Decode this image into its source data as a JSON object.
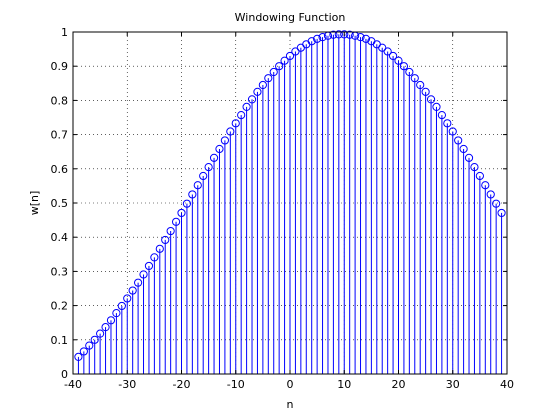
{
  "chart_data": {
    "type": "stem",
    "title": "Windowing Function",
    "xlabel": "n",
    "ylabel": "w[n]",
    "xlim": [
      -40,
      40
    ],
    "ylim": [
      0,
      1
    ],
    "xticks": [
      "-40",
      "-30",
      "-20",
      "-10",
      "0",
      "10",
      "20",
      "30",
      "40"
    ],
    "yticks": [
      "0",
      "0.1",
      "0.2",
      "0.3",
      "0.4",
      "0.5",
      "0.6",
      "0.7",
      "0.8",
      "0.9",
      "1"
    ],
    "grid": true,
    "series": [
      {
        "color": "#0000ff",
        "marker": "circle",
        "n_range": [
          -39,
          39
        ],
        "x": [
          -39,
          -38,
          -37,
          -36,
          -35,
          -34,
          -33,
          -32,
          -31,
          -30,
          -29,
          -28,
          -27,
          -26,
          -25,
          -24,
          -23,
          -22,
          -21,
          -20,
          -19,
          -18,
          -17,
          -16,
          -15,
          -14,
          -13,
          -12,
          -11,
          -10,
          -9,
          -8,
          -7,
          -6,
          -5,
          -4,
          -3,
          -2,
          -1,
          0,
          1,
          2,
          3,
          4,
          5,
          6,
          7,
          8,
          9,
          10,
          11,
          12,
          13,
          14,
          15,
          16,
          17,
          18,
          19,
          20,
          21,
          22,
          23,
          24,
          25,
          26,
          27,
          28,
          29,
          30,
          31,
          32,
          33,
          34,
          35,
          36,
          37,
          38,
          39
        ],
        "y": [
          0.05,
          0.066,
          0.083,
          0.1,
          0.118,
          0.137,
          0.157,
          0.178,
          0.199,
          0.221,
          0.244,
          0.267,
          0.291,
          0.316,
          0.341,
          0.366,
          0.392,
          0.418,
          0.445,
          0.471,
          0.498,
          0.525,
          0.552,
          0.579,
          0.605,
          0.632,
          0.658,
          0.683,
          0.709,
          0.733,
          0.757,
          0.781,
          0.803,
          0.825,
          0.845,
          0.865,
          0.883,
          0.9,
          0.916,
          0.93,
          0.943,
          0.954,
          0.964,
          0.973,
          0.98,
          0.985,
          0.989,
          0.992,
          0.993,
          0.993,
          0.992,
          0.989,
          0.985,
          0.98,
          0.973,
          0.964,
          0.954,
          0.943,
          0.93,
          0.916,
          0.9,
          0.883,
          0.865,
          0.845,
          0.825,
          0.803,
          0.781,
          0.757,
          0.733,
          0.709,
          0.683,
          0.658,
          0.632,
          0.605,
          0.579,
          0.552,
          0.525,
          0.498,
          0.471
        ]
      }
    ]
  }
}
